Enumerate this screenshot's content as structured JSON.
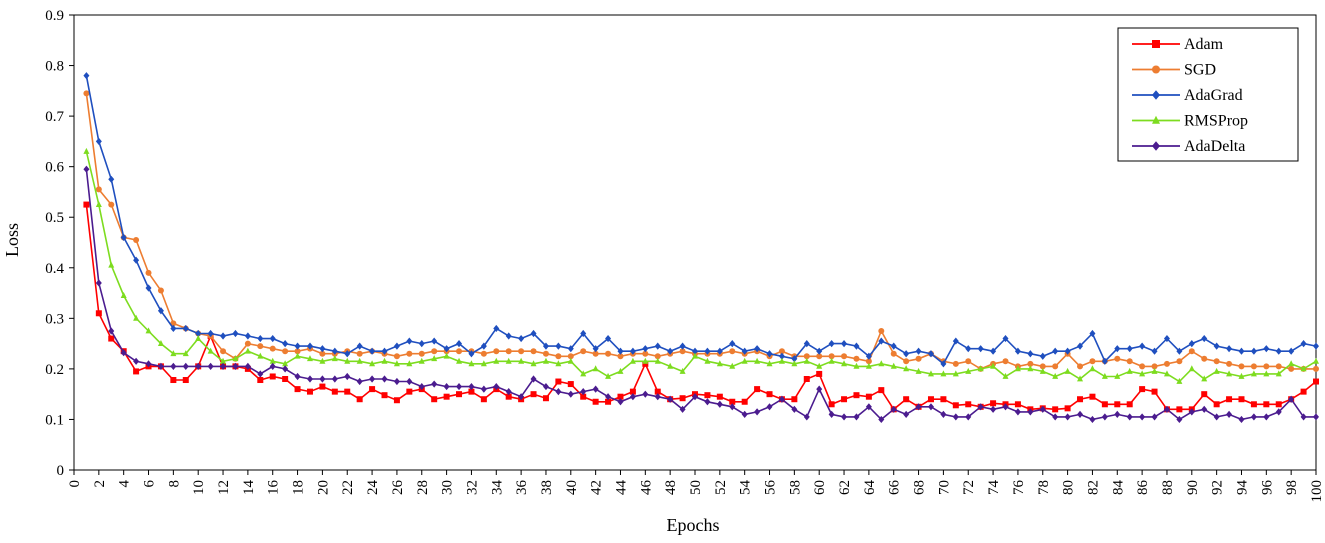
{
  "chart_data": {
    "type": "line",
    "xlabel": "Epochs",
    "ylabel": "Loss",
    "xlim": [
      0,
      100
    ],
    "ylim": [
      0,
      0.9
    ],
    "x_ticks": [
      0,
      2,
      4,
      6,
      8,
      10,
      12,
      14,
      16,
      18,
      20,
      22,
      24,
      26,
      28,
      30,
      32,
      34,
      36,
      38,
      40,
      42,
      44,
      46,
      48,
      50,
      52,
      54,
      56,
      58,
      60,
      62,
      64,
      66,
      68,
      70,
      72,
      74,
      76,
      78,
      80,
      82,
      84,
      86,
      88,
      90,
      92,
      94,
      96,
      98,
      100
    ],
    "y_ticks": [
      "0",
      "0.1",
      "0.2",
      "0.3",
      "0.4",
      "0.5",
      "0.6",
      "0.7",
      "0.8",
      "0.9"
    ],
    "grid": false,
    "legend_position": "top-right",
    "x": [
      1,
      2,
      3,
      4,
      5,
      6,
      7,
      8,
      9,
      10,
      11,
      12,
      13,
      14,
      15,
      16,
      17,
      18,
      19,
      20,
      21,
      22,
      23,
      24,
      25,
      26,
      27,
      28,
      29,
      30,
      31,
      32,
      33,
      34,
      35,
      36,
      37,
      38,
      39,
      40,
      41,
      42,
      43,
      44,
      45,
      46,
      47,
      48,
      49,
      50,
      51,
      52,
      53,
      54,
      55,
      56,
      57,
      58,
      59,
      60,
      61,
      62,
      63,
      64,
      65,
      66,
      67,
      68,
      69,
      70,
      71,
      72,
      73,
      74,
      75,
      76,
      77,
      78,
      79,
      80,
      81,
      82,
      83,
      84,
      85,
      86,
      87,
      88,
      89,
      90,
      91,
      92,
      93,
      94,
      95,
      96,
      97,
      98,
      99,
      100
    ],
    "series": [
      {
        "name": "Adam",
        "color": "#ff0000",
        "marker": "square",
        "values": [
          0.525,
          0.31,
          0.26,
          0.235,
          0.195,
          0.205,
          0.205,
          0.178,
          0.178,
          0.205,
          0.265,
          0.205,
          0.205,
          0.2,
          0.178,
          0.185,
          0.18,
          0.16,
          0.155,
          0.165,
          0.155,
          0.155,
          0.14,
          0.16,
          0.148,
          0.138,
          0.155,
          0.16,
          0.14,
          0.145,
          0.15,
          0.155,
          0.14,
          0.16,
          0.145,
          0.14,
          0.15,
          0.142,
          0.175,
          0.17,
          0.145,
          0.135,
          0.135,
          0.145,
          0.155,
          0.21,
          0.155,
          0.14,
          0.142,
          0.15,
          0.148,
          0.145,
          0.135,
          0.135,
          0.16,
          0.15,
          0.14,
          0.14,
          0.18,
          0.19,
          0.13,
          0.14,
          0.148,
          0.145,
          0.158,
          0.12,
          0.14,
          0.125,
          0.14,
          0.14,
          0.128,
          0.13,
          0.125,
          0.132,
          0.13,
          0.13,
          0.12,
          0.122,
          0.12,
          0.122,
          0.14,
          0.145,
          0.13,
          0.13,
          0.13,
          0.16,
          0.155,
          0.12,
          0.12,
          0.12,
          0.15,
          0.13,
          0.14,
          0.14,
          0.13,
          0.13,
          0.13,
          0.14,
          0.155,
          0.175
        ]
      },
      {
        "name": "SGD",
        "color": "#ed7d31",
        "marker": "circle",
        "values": [
          0.745,
          0.555,
          0.525,
          0.46,
          0.455,
          0.39,
          0.355,
          0.29,
          0.28,
          0.27,
          0.265,
          0.235,
          0.22,
          0.25,
          0.245,
          0.24,
          0.235,
          0.235,
          0.24,
          0.23,
          0.23,
          0.235,
          0.23,
          0.235,
          0.23,
          0.225,
          0.23,
          0.23,
          0.235,
          0.235,
          0.235,
          0.235,
          0.23,
          0.235,
          0.235,
          0.235,
          0.235,
          0.23,
          0.225,
          0.225,
          0.235,
          0.23,
          0.23,
          0.225,
          0.23,
          0.23,
          0.225,
          0.23,
          0.235,
          0.23,
          0.23,
          0.23,
          0.235,
          0.23,
          0.235,
          0.225,
          0.235,
          0.225,
          0.225,
          0.225,
          0.225,
          0.225,
          0.22,
          0.215,
          0.275,
          0.23,
          0.215,
          0.22,
          0.23,
          0.215,
          0.21,
          0.215,
          0.2,
          0.21,
          0.215,
          0.205,
          0.21,
          0.205,
          0.205,
          0.23,
          0.205,
          0.215,
          0.215,
          0.22,
          0.215,
          0.205,
          0.205,
          0.21,
          0.215,
          0.235,
          0.22,
          0.215,
          0.21,
          0.205,
          0.205,
          0.205,
          0.205,
          0.2,
          0.2,
          0.2
        ]
      },
      {
        "name": "AdaGrad",
        "color": "#1f4fbf",
        "marker": "diamond",
        "values": [
          0.78,
          0.65,
          0.575,
          0.46,
          0.415,
          0.36,
          0.315,
          0.28,
          0.28,
          0.27,
          0.27,
          0.265,
          0.27,
          0.265,
          0.26,
          0.26,
          0.25,
          0.245,
          0.245,
          0.24,
          0.235,
          0.23,
          0.245,
          0.235,
          0.235,
          0.245,
          0.255,
          0.25,
          0.255,
          0.24,
          0.25,
          0.23,
          0.245,
          0.28,
          0.265,
          0.26,
          0.27,
          0.245,
          0.245,
          0.24,
          0.27,
          0.24,
          0.26,
          0.235,
          0.235,
          0.24,
          0.245,
          0.235,
          0.245,
          0.235,
          0.235,
          0.235,
          0.25,
          0.235,
          0.24,
          0.23,
          0.225,
          0.22,
          0.25,
          0.235,
          0.25,
          0.25,
          0.245,
          0.225,
          0.255,
          0.245,
          0.23,
          0.235,
          0.23,
          0.21,
          0.255,
          0.24,
          0.24,
          0.235,
          0.26,
          0.235,
          0.23,
          0.225,
          0.235,
          0.235,
          0.245,
          0.27,
          0.215,
          0.24,
          0.24,
          0.245,
          0.235,
          0.26,
          0.235,
          0.25,
          0.26,
          0.245,
          0.24,
          0.235,
          0.235,
          0.24,
          0.235,
          0.235,
          0.25,
          0.245
        ]
      },
      {
        "name": "RMSProp",
        "color": "#7ddc1f",
        "marker": "triangle",
        "values": [
          0.63,
          0.525,
          0.405,
          0.345,
          0.3,
          0.275,
          0.25,
          0.23,
          0.23,
          0.26,
          0.235,
          0.215,
          0.22,
          0.235,
          0.225,
          0.215,
          0.21,
          0.225,
          0.22,
          0.215,
          0.22,
          0.215,
          0.215,
          0.21,
          0.215,
          0.21,
          0.21,
          0.215,
          0.22,
          0.225,
          0.215,
          0.21,
          0.21,
          0.215,
          0.215,
          0.215,
          0.21,
          0.215,
          0.21,
          0.215,
          0.19,
          0.2,
          0.185,
          0.195,
          0.215,
          0.215,
          0.215,
          0.205,
          0.195,
          0.225,
          0.215,
          0.21,
          0.205,
          0.215,
          0.215,
          0.21,
          0.215,
          0.21,
          0.215,
          0.205,
          0.215,
          0.21,
          0.205,
          0.205,
          0.21,
          0.205,
          0.2,
          0.195,
          0.19,
          0.19,
          0.19,
          0.195,
          0.2,
          0.205,
          0.185,
          0.2,
          0.2,
          0.195,
          0.185,
          0.195,
          0.18,
          0.2,
          0.185,
          0.185,
          0.195,
          0.19,
          0.195,
          0.19,
          0.175,
          0.2,
          0.18,
          0.195,
          0.19,
          0.185,
          0.19,
          0.19,
          0.19,
          0.21,
          0.2,
          0.215
        ]
      },
      {
        "name": "AdaDelta",
        "color": "#4b1c8f",
        "marker": "diamond",
        "values": [
          0.595,
          0.37,
          0.275,
          0.232,
          0.215,
          0.21,
          0.205,
          0.205,
          0.205,
          0.205,
          0.205,
          0.205,
          0.205,
          0.205,
          0.19,
          0.205,
          0.2,
          0.185,
          0.18,
          0.18,
          0.18,
          0.185,
          0.175,
          0.18,
          0.18,
          0.175,
          0.175,
          0.165,
          0.17,
          0.165,
          0.165,
          0.165,
          0.16,
          0.165,
          0.155,
          0.145,
          0.18,
          0.165,
          0.155,
          0.15,
          0.155,
          0.16,
          0.145,
          0.135,
          0.145,
          0.15,
          0.145,
          0.14,
          0.12,
          0.145,
          0.135,
          0.13,
          0.125,
          0.11,
          0.115,
          0.125,
          0.14,
          0.12,
          0.105,
          0.16,
          0.11,
          0.105,
          0.105,
          0.125,
          0.1,
          0.12,
          0.11,
          0.125,
          0.125,
          0.11,
          0.105,
          0.105,
          0.125,
          0.12,
          0.125,
          0.115,
          0.115,
          0.12,
          0.105,
          0.105,
          0.11,
          0.1,
          0.105,
          0.11,
          0.105,
          0.105,
          0.105,
          0.12,
          0.1,
          0.115,
          0.12,
          0.105,
          0.11,
          0.1,
          0.105,
          0.105,
          0.115,
          0.14,
          0.105,
          0.105
        ]
      }
    ]
  }
}
